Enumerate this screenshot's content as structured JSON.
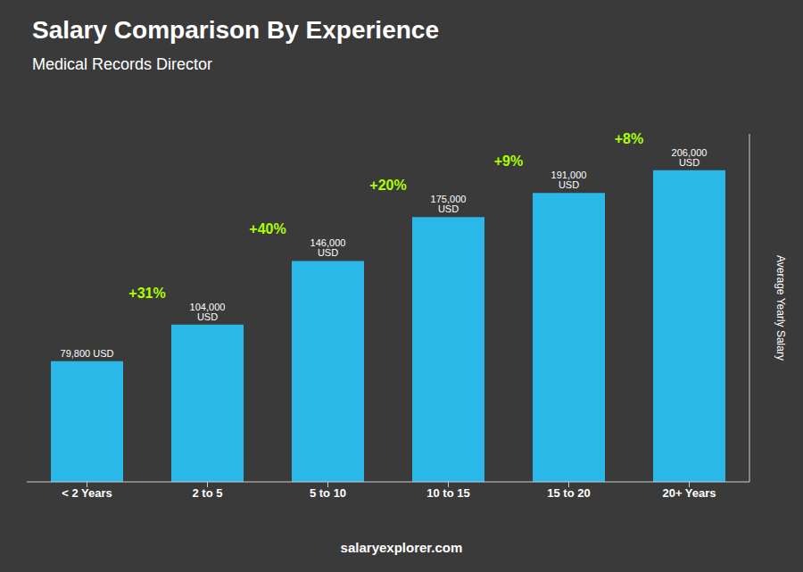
{
  "chart_data": {
    "type": "bar",
    "title": "Salary Comparison By Experience",
    "subtitle": "Medical Records Director",
    "y_label": "Average Yearly Salary",
    "footer": "salaryexplorer.com",
    "categories": [
      "< 2 Years",
      "2 to 5",
      "5 to 10",
      "10 to 15",
      "15 to 20",
      "20+ Years"
    ],
    "values": [
      79800,
      104000,
      146000,
      175000,
      191000,
      206000
    ],
    "value_labels": [
      "79,800 USD",
      "104,000 USD",
      "146,000 USD",
      "175,000 USD",
      "191,000 USD",
      "206,000 USD"
    ],
    "data_labels": true,
    "color": "#29b8e8",
    "ylim": [
      0,
      230000
    ],
    "tick_labels": "x",
    "grid": false,
    "annotations": [
      {
        "text": "+31%",
        "color": "#aaff00"
      },
      {
        "text": "+40%",
        "color": "#aaff00"
      },
      {
        "text": "+20%",
        "color": "#aaff00"
      },
      {
        "text": "+9%",
        "color": "#aaff00"
      },
      {
        "text": "+8%",
        "color": "#aaff00"
      }
    ]
  }
}
